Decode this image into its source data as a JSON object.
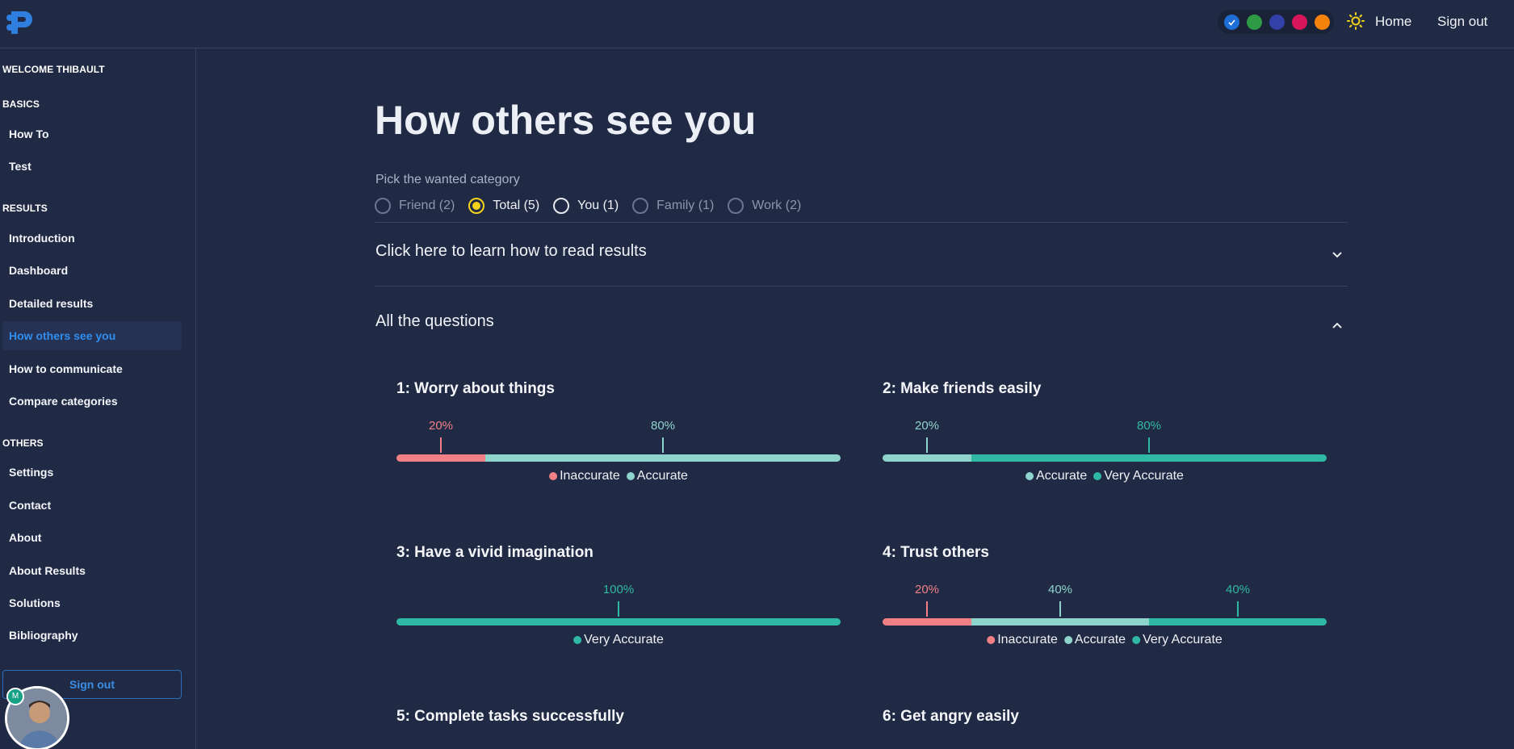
{
  "colors": {
    "background": "#202a44",
    "inaccurate": "#f08086",
    "accurate": "#8fd3cd",
    "very_accurate": "#2fb8a3",
    "accent": "#2f8ef0",
    "selected_radio": "#f4d21b"
  },
  "header": {
    "logo": "logo-icon",
    "theme_swatches": [
      "#1e6ed8",
      "#2e9a46",
      "#3240a8",
      "#d8175a",
      "#f5820b"
    ],
    "home_label": "Home",
    "signout_label": "Sign out"
  },
  "sidebar": {
    "welcome": "WELCOME THIBAULT",
    "basics_header": "BASICS",
    "basics": [
      "How To",
      "Test"
    ],
    "results_header": "RESULTS",
    "results": [
      "Introduction",
      "Dashboard",
      "Detailed results",
      "How others see you",
      "How to communicate",
      "Compare categories"
    ],
    "active_item": "How others see you",
    "others_header": "OTHERS",
    "others": [
      "Settings",
      "Contact",
      "About",
      "About Results",
      "Solutions",
      "Bibliography"
    ],
    "signout_label": "Sign out",
    "avatar_badge": "M"
  },
  "main": {
    "title": "How others see you",
    "pick_label": "Pick the wanted category",
    "categories": [
      {
        "label": "Friend (2)",
        "selected": false,
        "bright": false
      },
      {
        "label": "Total (5)",
        "selected": true,
        "bright": true
      },
      {
        "label": "You (1)",
        "selected": false,
        "bright": true
      },
      {
        "label": "Family (1)",
        "selected": false,
        "bright": false
      },
      {
        "label": "Work (2)",
        "selected": false,
        "bright": false
      }
    ],
    "learn_label": "Click here to learn how to read results",
    "all_questions_label": "All the questions",
    "questions": [
      {
        "title": "1: Worry about things",
        "segments": [
          {
            "name": "Inaccurate",
            "value": 20
          },
          {
            "name": "Accurate",
            "value": 80
          }
        ]
      },
      {
        "title": "2: Make friends easily",
        "segments": [
          {
            "name": "Accurate",
            "value": 20
          },
          {
            "name": "Very Accurate",
            "value": 80
          }
        ]
      },
      {
        "title": "3: Have a vivid imagination",
        "segments": [
          {
            "name": "Very Accurate",
            "value": 100
          }
        ]
      },
      {
        "title": "4: Trust others",
        "segments": [
          {
            "name": "Inaccurate",
            "value": 20
          },
          {
            "name": "Accurate",
            "value": 40
          },
          {
            "name": "Very Accurate",
            "value": 40
          }
        ]
      },
      {
        "title": "5: Complete tasks successfully",
        "segments": []
      },
      {
        "title": "6: Get angry easily",
        "segments": []
      }
    ]
  }
}
